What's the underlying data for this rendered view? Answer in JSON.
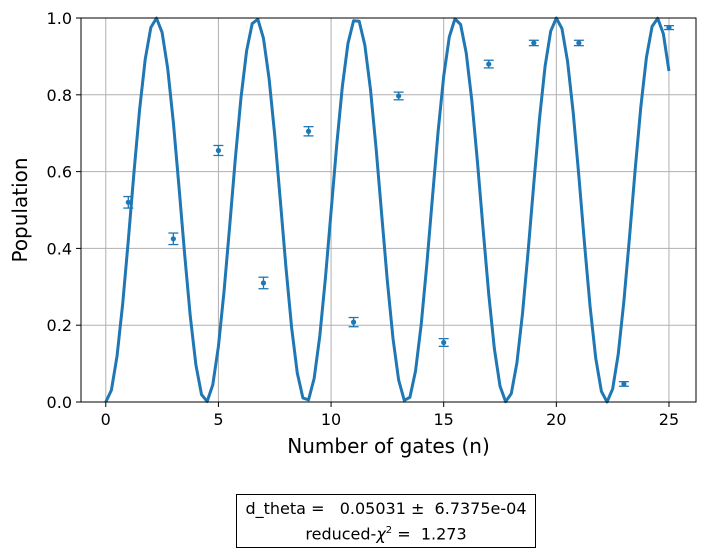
{
  "chart_data": {
    "type": "scatter",
    "xlabel": "Number of gates (n)",
    "ylabel": "Population",
    "xlim": [
      -1.1,
      26.2
    ],
    "ylim": [
      0,
      1.0
    ],
    "x_ticks": [
      "0",
      "5",
      "10",
      "15",
      "20",
      "25"
    ],
    "y_ticks": [
      "0.0",
      "0.2",
      "0.4",
      "0.6",
      "0.8",
      "1.0"
    ],
    "grid": true,
    "series": [
      {
        "kind": "points-with-errorbars",
        "x": [
          1,
          3,
          5,
          7,
          9,
          11,
          13,
          15,
          17,
          19,
          21,
          23,
          25
        ],
        "y": [
          0.52,
          0.425,
          0.655,
          0.31,
          0.705,
          0.208,
          0.797,
          0.155,
          0.88,
          0.935,
          0.935,
          0.047,
          0.975
        ],
        "yerr": [
          0.015,
          0.015,
          0.013,
          0.015,
          0.012,
          0.012,
          0.01,
          0.01,
          0.01,
          0.007,
          0.007,
          0.006,
          0.005
        ]
      },
      {
        "kind": "fit-line",
        "function": "sin^2",
        "d_theta": 0.05031,
        "x_start": 0,
        "x_end": 25,
        "step": 0.25
      }
    ],
    "colors": {
      "series": "#1f77b4",
      "grid": "#b0b0b0"
    },
    "fit_box": {
      "line1": "d_theta =   0.05031 ±  6.7375e-04",
      "line2_prefix": "reduced-",
      "line2_chi": "χ",
      "line2_sup": "2",
      "line2_suffix": " =  1.273"
    }
  }
}
